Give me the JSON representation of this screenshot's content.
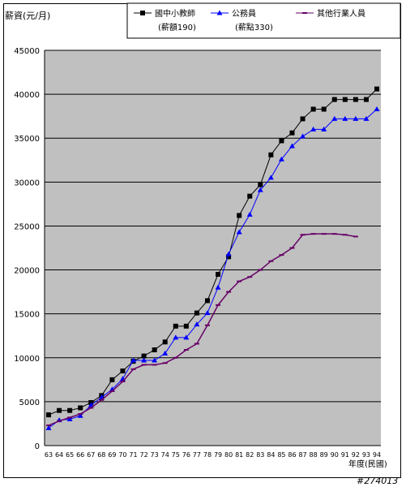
{
  "chart_data": {
    "type": "line",
    "ylabel": "薪資(元/月)",
    "xlabel": "年度(民國)",
    "ylim": [
      0,
      45000
    ],
    "yticks": [
      0,
      5000,
      10000,
      15000,
      20000,
      25000,
      30000,
      35000,
      40000,
      45000
    ],
    "ytick_labels": [
      "0",
      "5000",
      "10000",
      "15000",
      "20000",
      "25000",
      "30000",
      "35000",
      "40000",
      "45000"
    ],
    "x": [
      "63",
      "64",
      "65",
      "66",
      "67",
      "68",
      "69",
      "70",
      "71",
      "72",
      "73",
      "74",
      "75",
      "76",
      "77",
      "78",
      "79",
      "80",
      "81",
      "82",
      "83",
      "84",
      "85",
      "86",
      "87",
      "88",
      "89",
      "90",
      "91",
      "92",
      "93",
      "94"
    ],
    "grid": true,
    "legend_position": "top-right",
    "series": [
      {
        "name": "國中小教師",
        "sub": "(薪額190)",
        "color": "#000000",
        "marker": "square",
        "values": [
          3500,
          4000,
          4000,
          4300,
          4900,
          5700,
          7500,
          8500,
          9600,
          10200,
          10900,
          11800,
          13600,
          13600,
          15100,
          16500,
          19500,
          21500,
          26200,
          28400,
          29700,
          33100,
          34700,
          35600,
          37200,
          38300,
          38300,
          39400,
          39400,
          39400,
          39400,
          40600
        ]
      },
      {
        "name": "公務員",
        "sub": "(薪點330)",
        "color": "#0000ff",
        "marker": "triangle",
        "values": [
          2000,
          2900,
          3000,
          3400,
          4600,
          5500,
          6400,
          7600,
          9700,
          9700,
          9700,
          10500,
          12300,
          12300,
          13800,
          15100,
          18000,
          21800,
          24300,
          26300,
          29100,
          30500,
          32600,
          34100,
          35200,
          36000,
          36000,
          37200,
          37200,
          37200,
          37200,
          38300
        ]
      },
      {
        "name": "其他行業人員",
        "sub": "",
        "color": "#660066",
        "marker": "dash",
        "values": [
          2300,
          2800,
          3200,
          3600,
          4300,
          5200,
          6200,
          7300,
          8700,
          9200,
          9200,
          9400,
          10000,
          10900,
          11600,
          13700,
          16000,
          17500,
          18700,
          19200,
          20000,
          21000,
          21700,
          22500,
          24000,
          24100,
          24100,
          24100,
          24000,
          23800,
          null,
          null
        ]
      }
    ],
    "watermark": "#274013"
  }
}
